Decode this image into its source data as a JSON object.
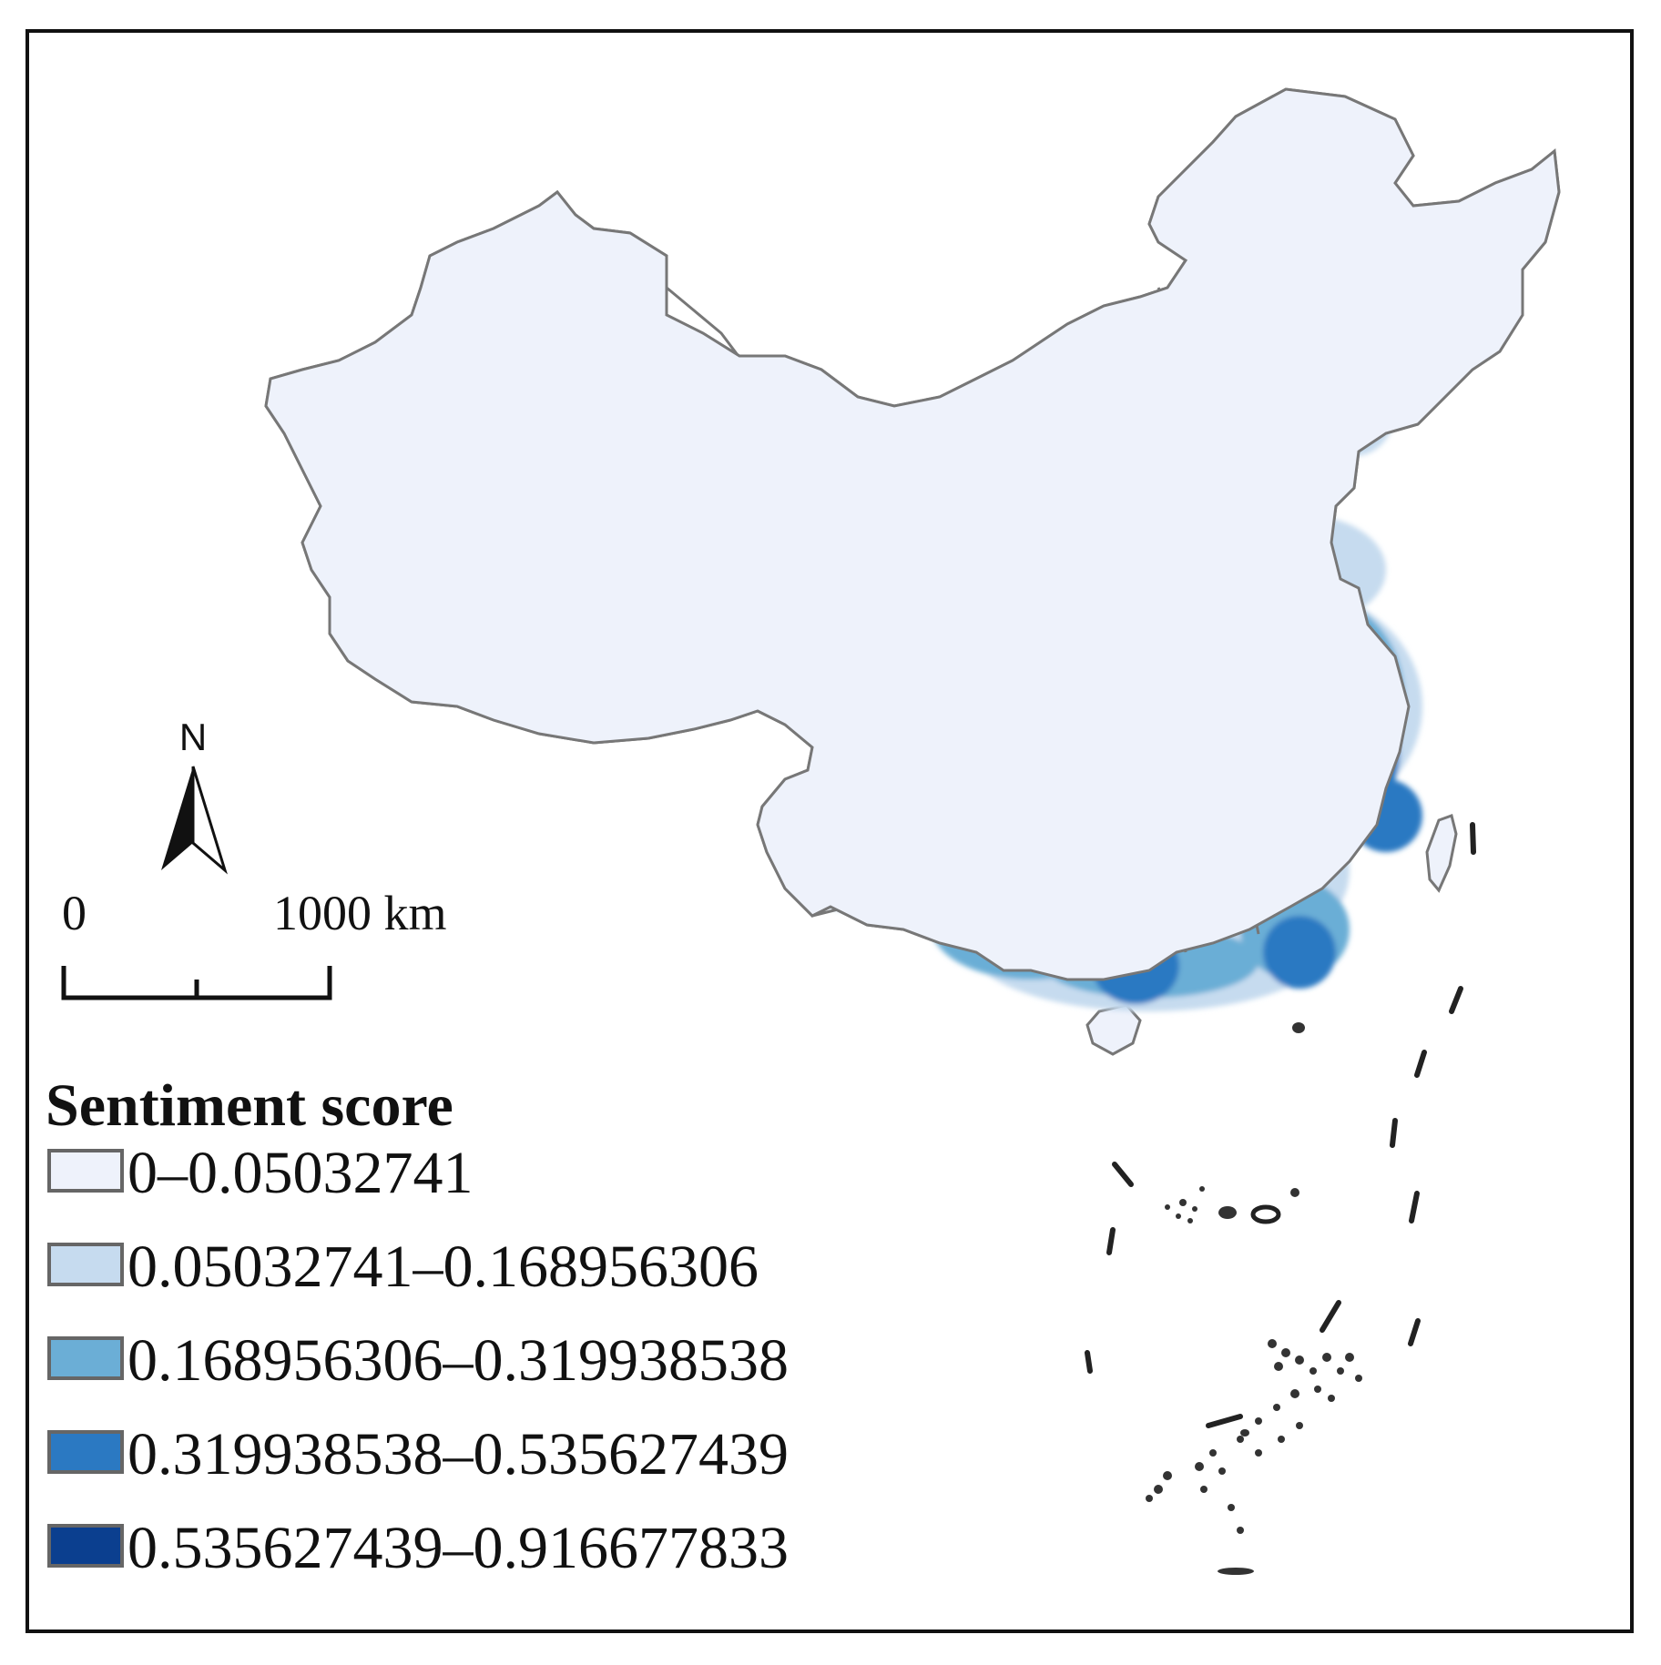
{
  "map": {
    "north_label": "N",
    "scale": {
      "start": "0",
      "end": "1000 km"
    }
  },
  "legend": {
    "title": "Sentiment score",
    "classes": [
      {
        "label": "0–0.05032741",
        "color": "#eef2fb"
      },
      {
        "label": "0.05032741–0.168956306",
        "color": "#c6dbef"
      },
      {
        "label": "0.168956306–0.319938538",
        "color": "#6baed6"
      },
      {
        "label": "0.319938538–0.535627439",
        "color": "#2b79c2"
      },
      {
        "label": "0.535627439–0.916677833",
        "color": "#0b3f8f"
      }
    ]
  },
  "colors": {
    "border": "#777777",
    "outline": "#111111"
  }
}
